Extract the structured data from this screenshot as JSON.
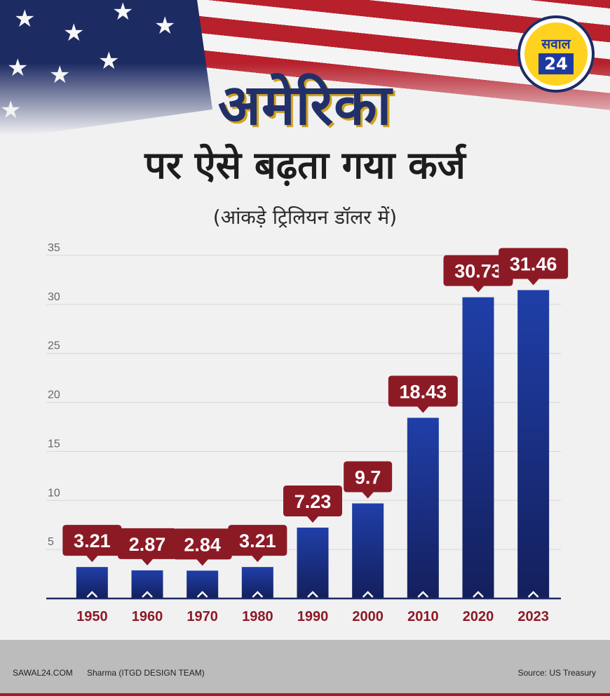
{
  "logo": {
    "top": "सवाल",
    "number": "24"
  },
  "heading": {
    "line1": "अमेरिका",
    "line2": "पर ऐसे बढ़ता गया कर्ज",
    "unit_note": "(आंकड़े ट्रिलियन डॉलर में)"
  },
  "footer": {
    "site": "SAWAL24.COM",
    "credit": "Sharma (ITGD DESIGN TEAM)",
    "source": "Source: US Treasury"
  },
  "colors": {
    "bar_top": "#1f3fa8",
    "bar_bottom": "#141f5c",
    "label_bg": "#8c1a25",
    "navy": "#22306a"
  },
  "chart_data": {
    "type": "bar",
    "categories": [
      "1950",
      "1960",
      "1970",
      "1980",
      "1990",
      "2000",
      "2010",
      "2020",
      "2023"
    ],
    "values": [
      3.21,
      2.87,
      2.84,
      3.21,
      7.23,
      9.7,
      18.43,
      30.73,
      31.46
    ],
    "data_labels": [
      "3.21",
      "2.87",
      "2.84",
      "3.21",
      "7.23",
      "9.7",
      "18.43",
      "30.73",
      "31.46"
    ],
    "yticks": [
      "5",
      "10",
      "15",
      "20",
      "25",
      "30",
      "35"
    ],
    "ylim": [
      0,
      35
    ],
    "grid": true,
    "xlabel": "",
    "ylabel": ""
  }
}
